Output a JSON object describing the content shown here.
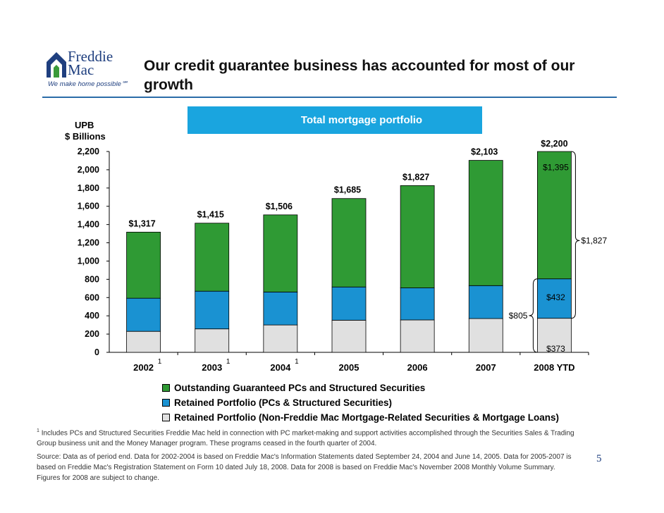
{
  "logo": {
    "line1": "Freddie",
    "line2": "Mac",
    "tagline": "We make home possible℠"
  },
  "title": "Our credit guarantee business has accounted for most of our growth",
  "banner": "Total mortgage portfolio",
  "y_axis_title_line1": "UPB",
  "y_axis_title_line2": "$ Billions",
  "footnote_marker": "1",
  "chart_data": {
    "type": "bar",
    "stacked": true,
    "categories": [
      "2002",
      "2003",
      "2004",
      "2005",
      "2006",
      "2007",
      "2008 YTD"
    ],
    "ylim": [
      0,
      2200
    ],
    "yticks": [
      "0",
      "200",
      "400",
      "600",
      "800",
      "1,000",
      "1,200",
      "1,400",
      "1,600",
      "1,800",
      "2,000",
      "2,200"
    ],
    "series": [
      {
        "name": "Retained Portfolio (Non-Freddie Mac Mortgage-Related Securities & Mortgage Loans)",
        "color": "#e0e0e0",
        "values": [
          230,
          257,
          300,
          352,
          355,
          370,
          373
        ]
      },
      {
        "name": "Retained Portfolio (PCs & Structured Securities)",
        "color": "#1a92d2",
        "values": [
          363,
          413,
          361,
          364,
          351,
          361,
          432
        ]
      },
      {
        "name": "Outstanding Guaranteed PCs and Structured Securities",
        "color": "#2f9a34",
        "values": [
          724,
          745,
          845,
          969,
          1121,
          1372,
          1395
        ]
      }
    ],
    "totals": [
      "$1,317",
      "$1,415",
      "$1,506",
      "$1,685",
      "$1,827",
      "$2,103",
      "$2,200"
    ],
    "footnote_categories": [
      0,
      1,
      2
    ],
    "annotations": {
      "green_2008": "$1,395",
      "blue_2008": "$432",
      "gray_2008": "$373",
      "retained_2008": "$805",
      "guarantee_2008": "$1,827"
    }
  },
  "footnote": "Includes PCs and Structured Securities Freddie Mac held in connection with PC market-making and support activities accomplished through the Securities Sales & Trading Group business unit and the Money Manager program. These programs ceased in the fourth quarter of 2004.",
  "source_note": "Source: Data as of period end.  Data for 2002-2004 is based on Freddie Mac's Information Statements dated September 24, 2004 and June 14, 2005.  Data for 2005-2007 is based on Freddie Mac's Registration Statement on Form 10 dated July 18, 2008.  Data for 2008 is based on Freddie Mac's November 2008 Monthly Volume Summary. Figures for 2008 are subject to change.",
  "page_number": "5"
}
